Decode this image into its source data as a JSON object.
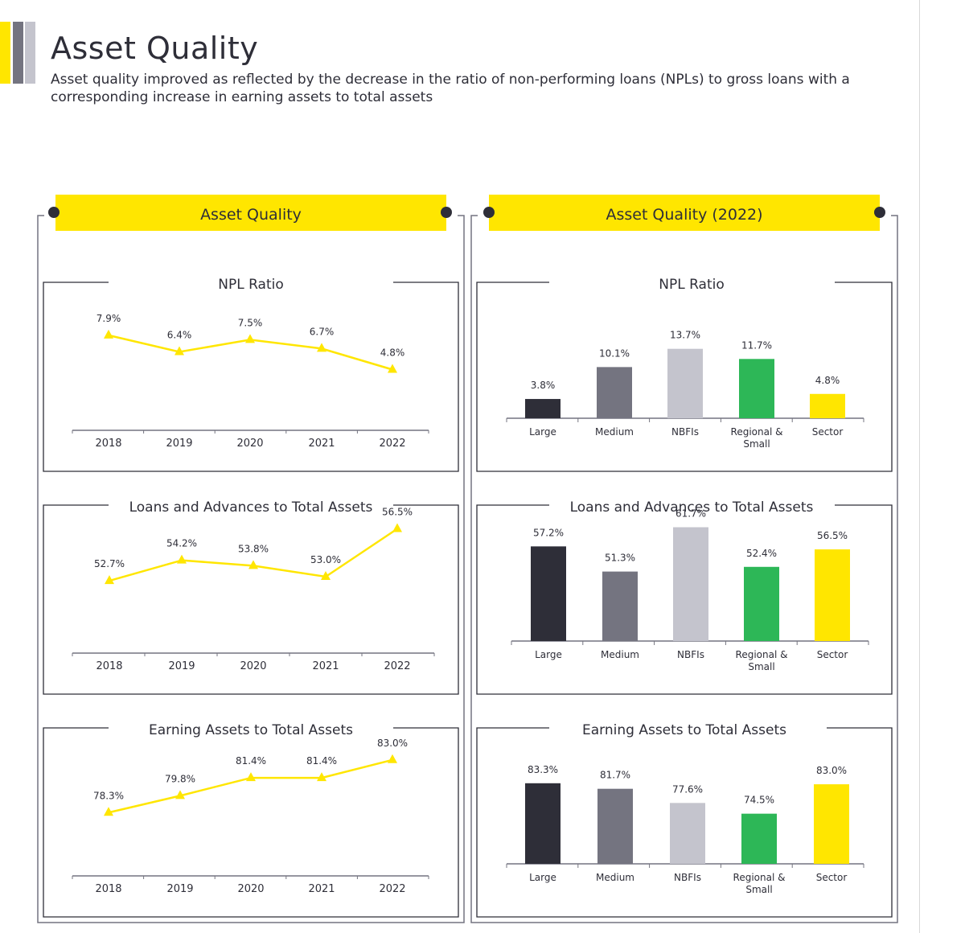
{
  "header": {
    "title": "Asset Quality",
    "subtitle": "Asset quality improved as reflected by the decrease in the ratio of non-performing loans (NPLs) to gross loans with a corresponding increase in earning assets to total assets"
  },
  "colors": {
    "yellow": "#ffe600",
    "dark": "#2e2e38",
    "medium": "#747480",
    "light": "#c4c4cd",
    "green": "#2db757"
  },
  "panels": [
    {
      "title": "Asset Quality"
    },
    {
      "title": "Asset Quality (2022)"
    }
  ],
  "chart_data": [
    {
      "type": "line",
      "title": "NPL Ratio",
      "x": [
        "2018",
        "2019",
        "2020",
        "2021",
        "2022"
      ],
      "series": [
        {
          "values": [
            7.9,
            6.4,
            7.5,
            6.7,
            4.8
          ]
        }
      ],
      "labels": [
        "7.9%",
        "6.4%",
        "7.5%",
        "6.7%",
        "4.8%"
      ]
    },
    {
      "type": "line",
      "title": "Loans and Advances to Total Assets",
      "x": [
        "2018",
        "2019",
        "2020",
        "2021",
        "2022"
      ],
      "series": [
        {
          "values": [
            52.7,
            54.2,
            53.8,
            53.0,
            56.5
          ]
        }
      ],
      "labels": [
        "52.7%",
        "54.2%",
        "53.8%",
        "53.0%",
        "56.5%"
      ]
    },
    {
      "type": "line",
      "title": "Earning Assets to Total Assets",
      "x": [
        "2018",
        "2019",
        "2020",
        "2021",
        "2022"
      ],
      "series": [
        {
          "values": [
            78.3,
            79.8,
            81.4,
            81.4,
            83.0
          ]
        }
      ],
      "labels": [
        "78.3%",
        "79.8%",
        "81.4%",
        "81.4%",
        "83.0%"
      ]
    },
    {
      "type": "bar",
      "title": "NPL Ratio",
      "categories": [
        "Large",
        "Medium",
        "NBFIs",
        "Regional &\nSmall",
        "Sector"
      ],
      "values": [
        3.8,
        10.1,
        13.7,
        11.7,
        4.8
      ],
      "labels": [
        "3.8%",
        "10.1%",
        "13.7%",
        "11.7%",
        "4.8%"
      ]
    },
    {
      "type": "bar",
      "title": "Loans and Advances to Total Assets",
      "categories": [
        "Large",
        "Medium",
        "NBFIs",
        "Regional &\nSmall",
        "Sector"
      ],
      "values": [
        57.2,
        51.3,
        61.7,
        52.4,
        56.5
      ],
      "labels": [
        "57.2%",
        "51.3%",
        "61.7%",
        "52.4%",
        "56.5%"
      ]
    },
    {
      "type": "bar",
      "title": "Earning Assets to Total Assets",
      "categories": [
        "Large",
        "Medium",
        "NBFIs",
        "Regional &\nSmall",
        "Sector"
      ],
      "values": [
        83.3,
        81.7,
        77.6,
        74.5,
        83.0
      ],
      "labels": [
        "83.3%",
        "81.7%",
        "77.6%",
        "74.5%",
        "83.0%"
      ]
    }
  ]
}
